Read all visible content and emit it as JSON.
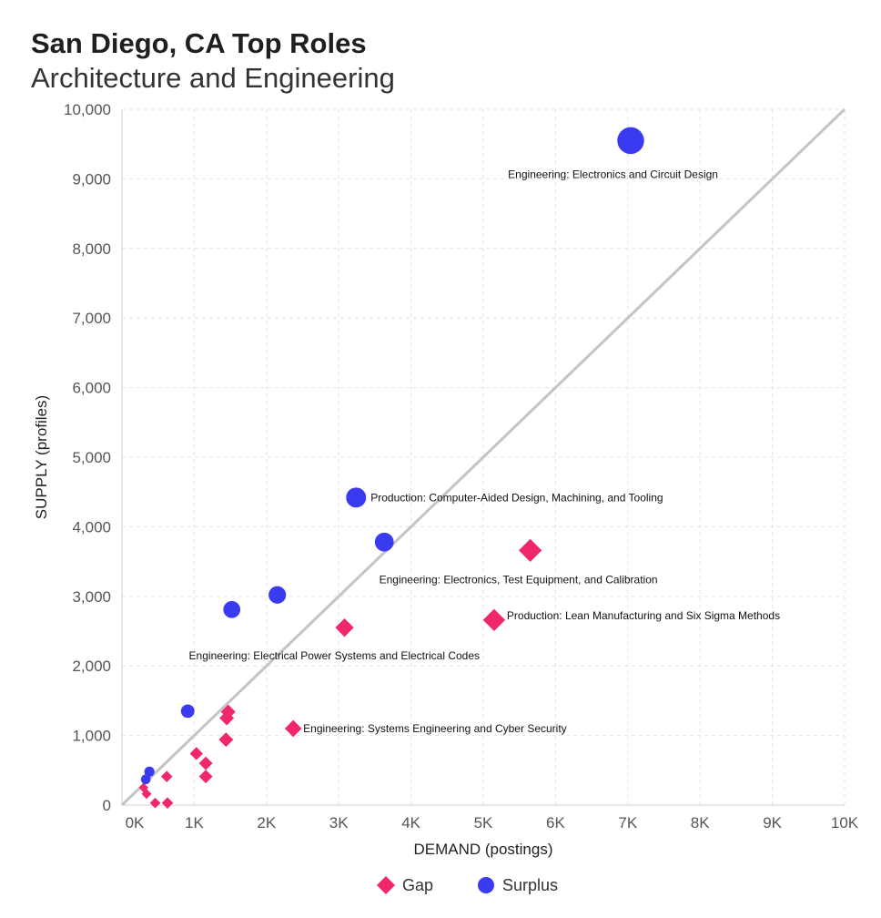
{
  "header": {
    "title": "San Diego, CA Top Roles",
    "subtitle": "Architecture and Engineering"
  },
  "chart_data": {
    "type": "scatter",
    "title": "San Diego, CA Top Roles",
    "subtitle": "Architecture and Engineering",
    "xlabel": "DEMAND (postings)",
    "ylabel": "SUPPLY (profiles)",
    "xlim": [
      0,
      10000
    ],
    "ylim": [
      0,
      10000
    ],
    "x_ticks": [
      0,
      1000,
      2000,
      3000,
      4000,
      5000,
      6000,
      7000,
      8000,
      9000,
      10000
    ],
    "x_tick_labels": [
      "0K",
      "1K",
      "2K",
      "3K",
      "4K",
      "5K",
      "6K",
      "7K",
      "8K",
      "9K",
      "10K"
    ],
    "y_ticks": [
      0,
      1000,
      2000,
      3000,
      4000,
      5000,
      6000,
      7000,
      8000,
      9000,
      10000
    ],
    "y_tick_labels": [
      "0",
      "1,000",
      "2,000",
      "3,000",
      "4,000",
      "5,000",
      "6,000",
      "7,000",
      "8,000",
      "9,000",
      "10,000"
    ],
    "grid": true,
    "reference_line": "y = x",
    "legend": {
      "position": "bottom-center",
      "entries": [
        {
          "name": "Gap",
          "shape": "diamond",
          "color": "#f0276b"
        },
        {
          "name": "Surplus",
          "shape": "circle",
          "color": "#3a3af0"
        }
      ]
    },
    "series": [
      {
        "name": "Gap",
        "shape": "diamond",
        "color": "#f0276b",
        "points": [
          {
            "x": 5650,
            "y": 3660,
            "label": "Engineering: Electronics, Test Equipment, and Calibration"
          },
          {
            "x": 5150,
            "y": 2660,
            "label": "Production: Lean Manufacturing and Six Sigma Methods"
          },
          {
            "x": 3080,
            "y": 2550,
            "label": "Engineering: Electrical Power Systems and Electrical Codes"
          },
          {
            "x": 2370,
            "y": 1100,
            "label": "Engineering: Systems Engineering and Cyber Security"
          },
          {
            "x": 1470,
            "y": 1340,
            "label": ""
          },
          {
            "x": 1450,
            "y": 1250,
            "label": ""
          },
          {
            "x": 1440,
            "y": 940,
            "label": ""
          },
          {
            "x": 1030,
            "y": 740,
            "label": ""
          },
          {
            "x": 1160,
            "y": 600,
            "label": ""
          },
          {
            "x": 1160,
            "y": 410,
            "label": ""
          },
          {
            "x": 620,
            "y": 410,
            "label": ""
          },
          {
            "x": 300,
            "y": 250,
            "label": ""
          },
          {
            "x": 340,
            "y": 160,
            "label": ""
          },
          {
            "x": 460,
            "y": 30,
            "label": ""
          },
          {
            "x": 630,
            "y": 30,
            "label": ""
          }
        ]
      },
      {
        "name": "Surplus",
        "shape": "circle",
        "color": "#3a3af0",
        "points": [
          {
            "x": 7040,
            "y": 9550,
            "label": "Engineering: Electronics and Circuit Design"
          },
          {
            "x": 3240,
            "y": 4420,
            "label": "Production: Computer-Aided Design, Machining, and Tooling"
          },
          {
            "x": 3630,
            "y": 3780,
            "label": ""
          },
          {
            "x": 2150,
            "y": 3020,
            "label": ""
          },
          {
            "x": 1520,
            "y": 2810,
            "label": ""
          },
          {
            "x": 910,
            "y": 1350,
            "label": ""
          },
          {
            "x": 380,
            "y": 480,
            "label": ""
          },
          {
            "x": 330,
            "y": 370,
            "label": ""
          }
        ]
      }
    ]
  }
}
